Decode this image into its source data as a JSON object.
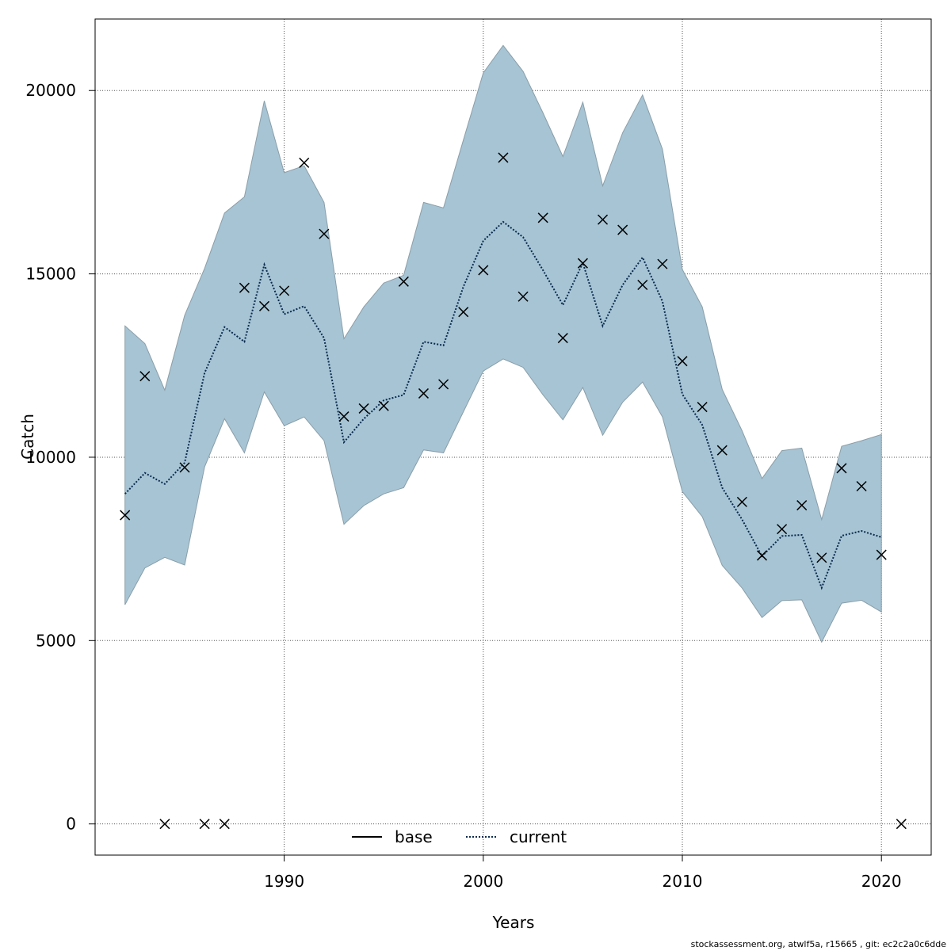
{
  "chart_data": {
    "type": "line",
    "xlabel": "Years",
    "ylabel": "Catch",
    "xlim": [
      1980.5,
      2022.5
    ],
    "ylim": [
      -850,
      21950
    ],
    "x_ticks": [
      1990,
      2000,
      2010,
      2020
    ],
    "y_ticks": [
      0,
      5000,
      10000,
      15000,
      20000
    ],
    "grid": true,
    "legend_position": "bottom-center",
    "legend": [
      {
        "name": "base",
        "style": "solid"
      },
      {
        "name": "current",
        "style": "dotted"
      }
    ],
    "colors": {
      "band_fill": "#a6c4d4",
      "band_edge": "#8a9ea8",
      "current_line": "#0a2a4e",
      "observed_marker": "#000000",
      "grid": "#555555"
    },
    "years": [
      1982,
      1983,
      1984,
      1985,
      1986,
      1987,
      1988,
      1989,
      1990,
      1991,
      1992,
      1993,
      1994,
      1995,
      1996,
      1997,
      1998,
      1999,
      2000,
      2001,
      2002,
      2003,
      2004,
      2005,
      2006,
      2007,
      2008,
      2009,
      2010,
      2011,
      2012,
      2013,
      2014,
      2015,
      2016,
      2017,
      2018,
      2019,
      2020
    ],
    "series": [
      {
        "name": "current",
        "style": "dotted",
        "values": [
          9000,
          9570,
          9270,
          9850,
          12300,
          13550,
          13150,
          15250,
          13900,
          14120,
          13250,
          10410,
          11050,
          11550,
          11700,
          13150,
          13050,
          14650,
          15900,
          16420,
          16000,
          15100,
          14150,
          15300,
          13580,
          14700,
          15450,
          14250,
          11720,
          10880,
          9170,
          8300,
          7300,
          7850,
          7880,
          6440,
          7860,
          7990,
          7820
        ]
      },
      {
        "name": "upper",
        "values": [
          13580,
          13100,
          11830,
          13870,
          15150,
          16660,
          17100,
          19720,
          17760,
          17950,
          16950,
          13230,
          14100,
          14750,
          14960,
          16950,
          16800,
          18650,
          20480,
          21230,
          20520,
          19390,
          18200,
          19680,
          17400,
          18850,
          19880,
          18400,
          15120,
          14100,
          11850,
          10720,
          9420,
          10180,
          10250,
          8300,
          10300,
          10450,
          10620
        ]
      },
      {
        "name": "lower",
        "values": [
          5980,
          6980,
          7270,
          7060,
          9740,
          11050,
          10120,
          11780,
          10860,
          11100,
          10450,
          8170,
          8680,
          9000,
          9170,
          10200,
          10120,
          11240,
          12350,
          12680,
          12450,
          11700,
          11020,
          11900,
          10600,
          11500,
          12050,
          11100,
          9060,
          8380,
          7050,
          6430,
          5630,
          6090,
          6110,
          4960,
          6020,
          6100,
          5780
        ]
      },
      {
        "name": "observed",
        "marker": "x",
        "x": [
          1982,
          1983,
          1984,
          1985,
          1986,
          1987,
          1988,
          1989,
          1990,
          1991,
          1992,
          1993,
          1994,
          1995,
          1996,
          1997,
          1998,
          1999,
          2000,
          2001,
          2002,
          2003,
          2004,
          2005,
          2006,
          2007,
          2008,
          2009,
          2010,
          2011,
          2012,
          2013,
          2014,
          2015,
          2016,
          2017,
          2018,
          2019,
          2020,
          2021
        ],
        "values": [
          8420,
          12210,
          0,
          9720,
          0,
          0,
          14620,
          14120,
          14540,
          18030,
          16090,
          11110,
          11330,
          11400,
          14790,
          11740,
          11990,
          13960,
          15100,
          18170,
          14380,
          16530,
          13250,
          15290,
          16480,
          16200,
          14700,
          15270,
          12620,
          11370,
          10190,
          8780,
          7320,
          8040,
          8690,
          7260,
          9700,
          9210,
          7340,
          0
        ]
      }
    ]
  },
  "footer": "stockassessment.org, atwlf5a, r15665 , git: ec2c2a0c6dde"
}
